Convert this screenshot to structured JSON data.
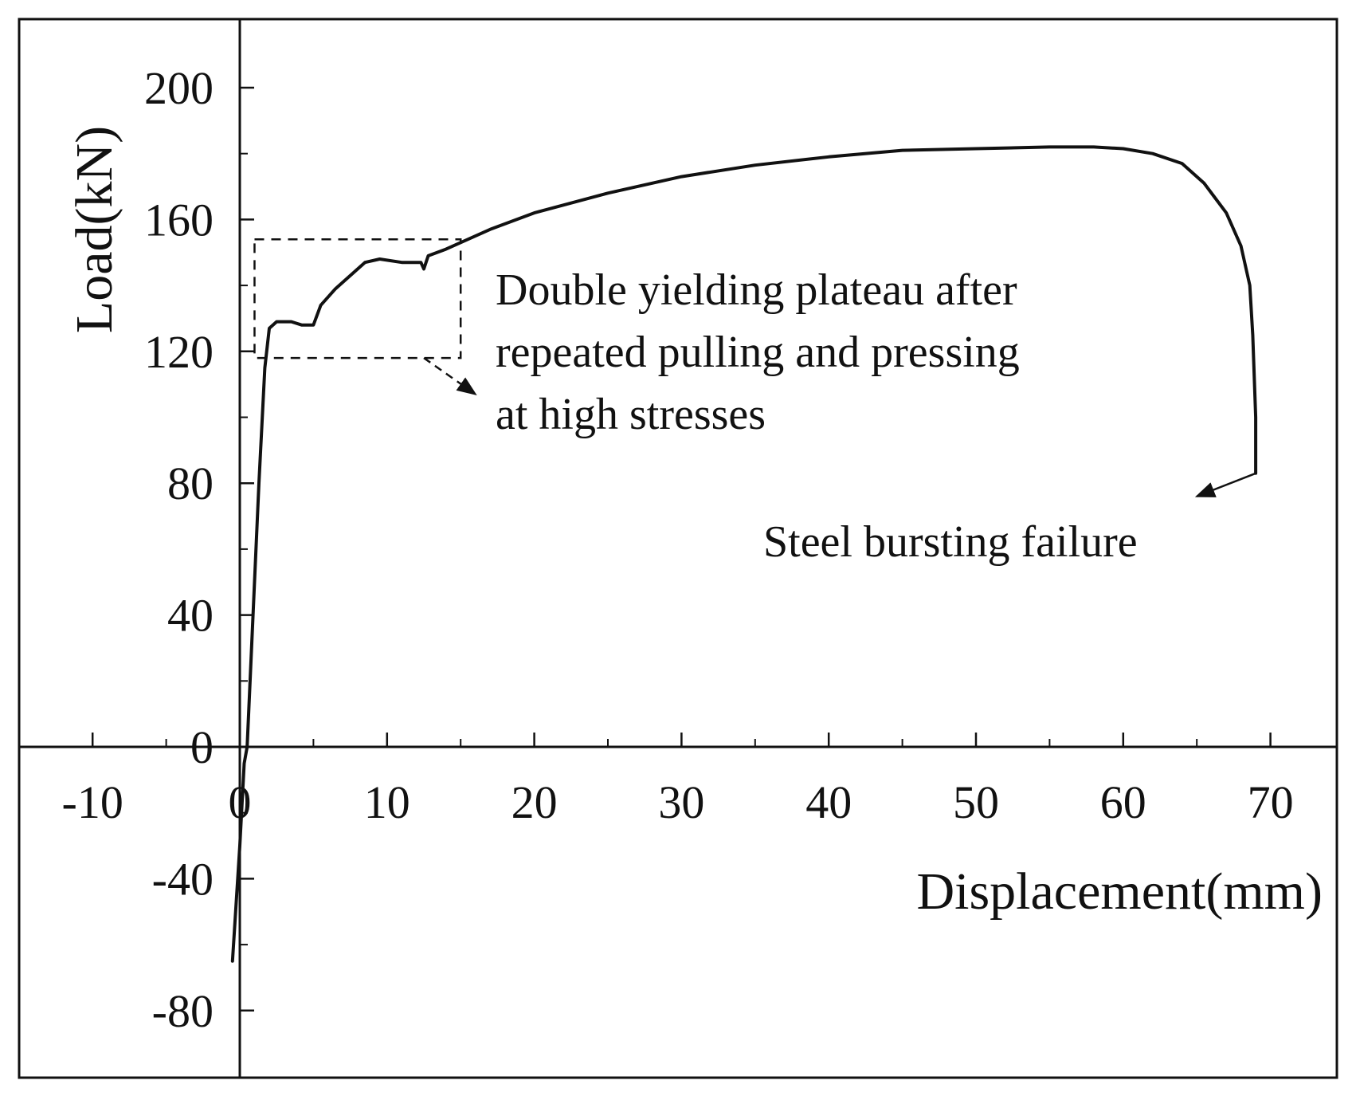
{
  "chart_data": {
    "type": "line",
    "title": "",
    "xlabel": "Displacement(mm)",
    "ylabel": "Load(kN)",
    "xlim": [
      -15,
      75
    ],
    "ylim": [
      -100,
      220
    ],
    "x_ticks": [
      -10,
      0,
      10,
      20,
      30,
      40,
      50,
      60,
      70
    ],
    "x_tick_labels": [
      "-10",
      "0",
      "10",
      "20",
      "30",
      "40",
      "50",
      "60",
      "70"
    ],
    "y_ticks": [
      -80,
      -40,
      0,
      40,
      80,
      120,
      160,
      200
    ],
    "y_tick_labels": [
      "-80",
      "-40",
      "0",
      "40",
      "80",
      "120",
      "160",
      "200"
    ],
    "grid": false,
    "series": [
      {
        "name": "load-displacement curve",
        "points": [
          [
            -0.5,
            -65
          ],
          [
            0.0,
            -30
          ],
          [
            0.3,
            -5
          ],
          [
            0.5,
            0
          ],
          [
            0.9,
            40
          ],
          [
            1.3,
            80
          ],
          [
            1.7,
            115
          ],
          [
            2.0,
            127
          ],
          [
            2.5,
            129
          ],
          [
            3.5,
            129
          ],
          [
            4.2,
            128
          ],
          [
            5.0,
            128
          ],
          [
            5.5,
            134
          ],
          [
            6.5,
            139
          ],
          [
            7.5,
            143
          ],
          [
            8.5,
            147
          ],
          [
            9.5,
            148
          ],
          [
            11.0,
            147
          ],
          [
            12.3,
            147
          ],
          [
            12.5,
            145
          ],
          [
            12.8,
            149
          ],
          [
            14.0,
            151
          ],
          [
            15.0,
            153
          ],
          [
            17.0,
            157
          ],
          [
            20.0,
            162
          ],
          [
            25.0,
            168
          ],
          [
            30.0,
            173
          ],
          [
            35.0,
            176.5
          ],
          [
            40.0,
            179
          ],
          [
            45.0,
            181
          ],
          [
            50.0,
            181.5
          ],
          [
            55.0,
            182
          ],
          [
            58.0,
            182
          ],
          [
            60.0,
            181.5
          ],
          [
            62.0,
            180
          ],
          [
            64.0,
            177
          ],
          [
            65.5,
            171
          ],
          [
            67.0,
            162
          ],
          [
            68.0,
            152
          ],
          [
            68.6,
            140
          ],
          [
            68.8,
            125
          ],
          [
            69.0,
            100
          ],
          [
            69.0,
            83
          ]
        ]
      }
    ],
    "highlight_region": {
      "x_range": [
        1,
        15
      ],
      "y_range": [
        118,
        154
      ],
      "style": "dashed"
    },
    "annotations": [
      {
        "lines": [
          "Double yielding plateau after",
          "repeated pulling and pressing",
          "at high stresses"
        ],
        "arrow_from": [
          12.5,
          118
        ],
        "arrow_to": [
          16,
          107
        ]
      },
      {
        "lines": [
          "Steel bursting failure"
        ],
        "arrow_from": [
          69,
          83
        ],
        "arrow_to": [
          65,
          76
        ]
      }
    ]
  }
}
